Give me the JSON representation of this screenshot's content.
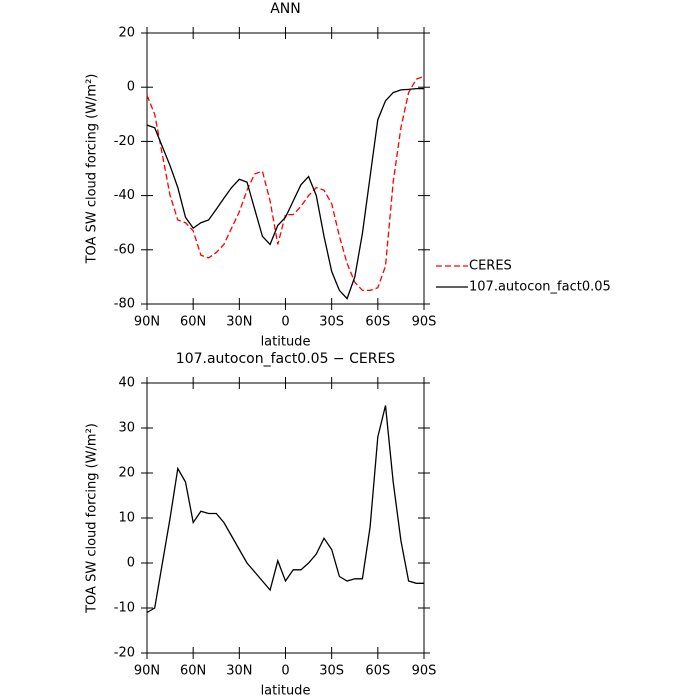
{
  "chart_data": [
    {
      "type": "line",
      "title": "ANN",
      "xlabel": "latitude",
      "ylabel": "TOA SW cloud forcing (W/m²)",
      "x": [
        90,
        85,
        80,
        75,
        70,
        65,
        60,
        55,
        50,
        45,
        40,
        35,
        30,
        25,
        20,
        15,
        10,
        5,
        0,
        -5,
        -10,
        -15,
        -20,
        -25,
        -30,
        -35,
        -40,
        -45,
        -50,
        -55,
        -60,
        -65,
        -70,
        -75,
        -80,
        -85,
        -90
      ],
      "xlim": [
        90,
        -90
      ],
      "xticks": [
        {
          "value": 90,
          "label": "90N"
        },
        {
          "value": 60,
          "label": "60N"
        },
        {
          "value": 30,
          "label": "30N"
        },
        0,
        {
          "value": -30,
          "label": "30S"
        },
        {
          "value": -60,
          "label": "60S"
        },
        {
          "value": -90,
          "label": "90S"
        }
      ],
      "ylim": [
        -80,
        20
      ],
      "yticks": [
        -80,
        -60,
        -40,
        -20,
        0,
        20
      ],
      "legend": "right",
      "series": [
        {
          "name": "CERES",
          "color": "#ff0000",
          "linestyle": "dashed",
          "values": [
            -3,
            -10,
            -25,
            -40,
            -49,
            -50,
            -53,
            -62,
            -63,
            -61,
            -58,
            -52,
            -46,
            -38,
            -32,
            -31,
            -42,
            -58,
            -47,
            -47,
            -44,
            -40,
            -37,
            -38,
            -43,
            -55,
            -65,
            -72,
            -75,
            -75,
            -74,
            -66,
            -35,
            -15,
            -2,
            3,
            4
          ]
        },
        {
          "name": "107.autocon_fact0.05",
          "color": "#000000",
          "linestyle": "solid",
          "values": [
            -14,
            -15,
            -22,
            -29,
            -37,
            -48,
            -52,
            -50,
            -49,
            -45,
            -41,
            -37,
            -34,
            -35,
            -45,
            -55,
            -58,
            -51,
            -48,
            -42,
            -36,
            -33,
            -40,
            -55,
            -68,
            -75,
            -78,
            -70,
            -54,
            -33,
            -12,
            -5,
            -2,
            -1,
            -0.8,
            -0.5,
            -0.5
          ]
        }
      ]
    },
    {
      "type": "line",
      "title": "107.autocon_fact0.05 − CERES",
      "xlabel": "latitude",
      "ylabel": "TOA SW cloud forcing (W/m²)",
      "x": [
        90,
        85,
        80,
        75,
        70,
        65,
        60,
        55,
        50,
        45,
        40,
        35,
        30,
        25,
        20,
        15,
        10,
        5,
        0,
        -5,
        -10,
        -15,
        -20,
        -25,
        -30,
        -35,
        -40,
        -45,
        -50,
        -55,
        -60,
        -65,
        -70,
        -75,
        -80,
        -85,
        -90
      ],
      "xlim": [
        90,
        -90
      ],
      "xticks": [
        {
          "value": 90,
          "label": "90N"
        },
        {
          "value": 60,
          "label": "60N"
        },
        {
          "value": 30,
          "label": "30N"
        },
        0,
        {
          "value": -30,
          "label": "30S"
        },
        {
          "value": -60,
          "label": "60S"
        },
        {
          "value": -90,
          "label": "90S"
        }
      ],
      "ylim": [
        -20,
        40
      ],
      "yticks": [
        -20,
        -10,
        0,
        10,
        20,
        30,
        40
      ],
      "color": "#000000",
      "values": [
        -11,
        -10,
        0,
        10,
        21,
        18,
        9,
        11.5,
        11,
        11,
        9,
        6,
        3,
        0,
        -2,
        -4,
        -6,
        0.5,
        -4,
        -1.5,
        -1.5,
        0,
        2,
        5.5,
        3,
        -3,
        -4,
        -3.5,
        -3.5,
        8,
        28,
        35,
        18,
        5,
        -4,
        -4.5,
        -4.5
      ]
    }
  ]
}
